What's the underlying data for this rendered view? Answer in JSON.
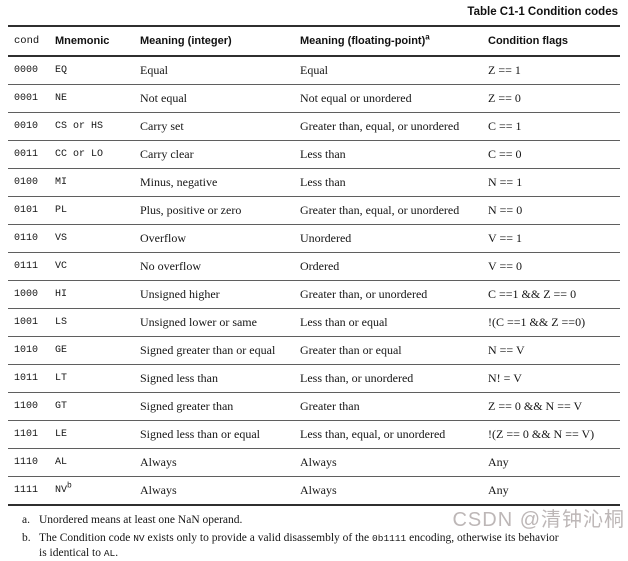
{
  "page": {
    "title": "Table C1-1 Condition codes"
  },
  "table": {
    "headers": {
      "cond": "cond",
      "mnemonic": "Mnemonic",
      "meaning_int": "Meaning (integer)",
      "meaning_fp": "Meaning (floating-point)",
      "meaning_fp_sup": "a",
      "flags": "Condition flags"
    },
    "rows": [
      {
        "cond": "0000",
        "mnemonic": "EQ",
        "sup": "",
        "meaning_int": "Equal",
        "meaning_fp": "Equal",
        "flags": "Z == 1"
      },
      {
        "cond": "0001",
        "mnemonic": "NE",
        "sup": "",
        "meaning_int": "Not equal",
        "meaning_fp": "Not equal or unordered",
        "flags": "Z == 0"
      },
      {
        "cond": "0010",
        "mnemonic": "CS or HS",
        "sup": "",
        "meaning_int": "Carry set",
        "meaning_fp": "Greater than, equal, or unordered",
        "flags": "C == 1"
      },
      {
        "cond": "0011",
        "mnemonic": "CC or LO",
        "sup": "",
        "meaning_int": "Carry clear",
        "meaning_fp": "Less than",
        "flags": "C == 0"
      },
      {
        "cond": "0100",
        "mnemonic": "MI",
        "sup": "",
        "meaning_int": "Minus, negative",
        "meaning_fp": "Less than",
        "flags": "N == 1"
      },
      {
        "cond": "0101",
        "mnemonic": "PL",
        "sup": "",
        "meaning_int": "Plus, positive or zero",
        "meaning_fp": "Greater than, equal, or unordered",
        "flags": "N == 0"
      },
      {
        "cond": "0110",
        "mnemonic": "VS",
        "sup": "",
        "meaning_int": "Overflow",
        "meaning_fp": "Unordered",
        "flags": "V == 1"
      },
      {
        "cond": "0111",
        "mnemonic": "VC",
        "sup": "",
        "meaning_int": "No overflow",
        "meaning_fp": "Ordered",
        "flags": "V == 0"
      },
      {
        "cond": "1000",
        "mnemonic": "HI",
        "sup": "",
        "meaning_int": "Unsigned higher",
        "meaning_fp": "Greater than, or unordered",
        "flags": "C ==1 && Z == 0"
      },
      {
        "cond": "1001",
        "mnemonic": "LS",
        "sup": "",
        "meaning_int": "Unsigned lower or same",
        "meaning_fp": "Less than or equal",
        "flags": "!(C ==1 && Z ==0)"
      },
      {
        "cond": "1010",
        "mnemonic": "GE",
        "sup": "",
        "meaning_int": "Signed greater than or equal",
        "meaning_fp": "Greater than or equal",
        "flags": "N == V"
      },
      {
        "cond": "1011",
        "mnemonic": "LT",
        "sup": "",
        "meaning_int": "Signed less than",
        "meaning_fp": "Less than, or unordered",
        "flags": "N! = V"
      },
      {
        "cond": "1100",
        "mnemonic": "GT",
        "sup": "",
        "meaning_int": "Signed greater than",
        "meaning_fp": "Greater than",
        "flags": "Z == 0 && N == V"
      },
      {
        "cond": "1101",
        "mnemonic": "LE",
        "sup": "",
        "meaning_int": "Signed less than or equal",
        "meaning_fp": "Less than, equal, or unordered",
        "flags": "!(Z == 0 && N == V)"
      },
      {
        "cond": "1110",
        "mnemonic": "AL",
        "sup": "",
        "meaning_int": "Always",
        "meaning_fp": "Always",
        "flags": "Any"
      },
      {
        "cond": "1111",
        "mnemonic": "NV",
        "sup": "b",
        "meaning_int": "Always",
        "meaning_fp": "Always",
        "flags": "Any"
      }
    ]
  },
  "footnotes": {
    "a": {
      "marker": "a.",
      "text": "Unordered means at least one NaN operand."
    },
    "b": {
      "marker": "b.",
      "p1": "The Condition code ",
      "code1": "NV",
      "p2": " exists only to provide a valid disassembly of the ",
      "code2": "0b1111",
      "p3": " encoding, otherwise its behavior is identical to ",
      "code3": "AL",
      "p4": "."
    }
  },
  "watermark": {
    "text": "CSDN @清钟沁桐",
    "color": "#bdb7b7"
  }
}
